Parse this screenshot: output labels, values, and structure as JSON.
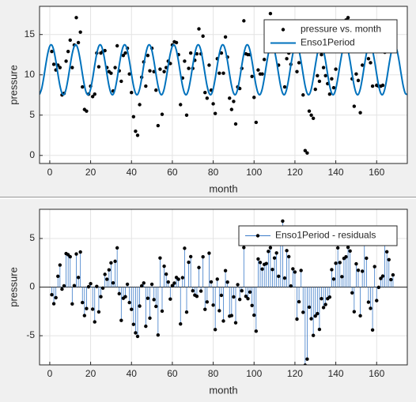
{
  "chart_data": [
    {
      "type": "scatter",
      "xlabel": "month",
      "ylabel": "pressure",
      "xlim": [
        -5,
        175
      ],
      "ylim": [
        -1,
        18.5
      ],
      "xticks": [
        0,
        20,
        40,
        60,
        80,
        100,
        120,
        140,
        160
      ],
      "yticks": [
        0,
        5,
        10,
        15
      ],
      "grid": true,
      "legend": "upper right",
      "series": [
        {
          "name": "pressure vs. month",
          "type": "scatter",
          "color": "#000000",
          "x": [
            1,
            2,
            3,
            4,
            5,
            6,
            7,
            8,
            9,
            10,
            11,
            12,
            13,
            14,
            15,
            16,
            17,
            18,
            19,
            20,
            21,
            22,
            23,
            24,
            25,
            26,
            27,
            28,
            29,
            30,
            31,
            32,
            33,
            34,
            35,
            36,
            37,
            38,
            39,
            40,
            41,
            42,
            43,
            44,
            45,
            46,
            47,
            48,
            49,
            50,
            51,
            52,
            53,
            54,
            55,
            56,
            57,
            58,
            59,
            60,
            61,
            62,
            63,
            64,
            65,
            66,
            67,
            68,
            69,
            70,
            71,
            72,
            73,
            74,
            75,
            76,
            77,
            78,
            79,
            80,
            81,
            82,
            83,
            84,
            85,
            86,
            87,
            88,
            89,
            90,
            91,
            92,
            93,
            94,
            95,
            96,
            97,
            98,
            99,
            100,
            101,
            102,
            103,
            104,
            105,
            106,
            107,
            108,
            109,
            110,
            111,
            112,
            113,
            114,
            115,
            116,
            117,
            118,
            119,
            120,
            121,
            122,
            123,
            124,
            125,
            126,
            127,
            128,
            129,
            130,
            131,
            132,
            133,
            134,
            135,
            136,
            137,
            138,
            139,
            140,
            141,
            142,
            143,
            144,
            145,
            146,
            147,
            148,
            149,
            150,
            151,
            152,
            153,
            154,
            155,
            156,
            157,
            158,
            159,
            160,
            161,
            162,
            163,
            164,
            165,
            166,
            167,
            168
          ],
          "values": [
            12.9,
            11.3,
            10.6,
            11.2,
            10.9,
            7.5,
            7.7,
            11.7,
            12.9,
            14.3,
            10.9,
            13.7,
            17.1,
            14.0,
            15.3,
            8.5,
            5.7,
            5.5,
            7.6,
            8.6,
            7.3,
            7.6,
            12.7,
            11.0,
            12.7,
            12.9,
            13.0,
            10.9,
            10.4,
            10.2,
            8.0,
            10.9,
            13.6,
            10.5,
            9.2,
            12.4,
            12.7,
            13.3,
            10.1,
            7.8,
            4.8,
            3.0,
            2.5,
            6.3,
            9.7,
            11.6,
            8.6,
            12.4,
            10.5,
            13.3,
            10.4,
            8.1,
            3.7,
            10.7,
            5.1,
            10.4,
            10.9,
            11.7,
            11.4,
            13.7,
            14.1,
            14.0,
            12.5,
            6.3,
            9.6,
            11.7,
            5.0,
            10.8,
            12.7,
            10.8,
            11.8,
            12.6,
            15.7,
            12.6,
            14.8,
            7.8,
            7.1,
            11.2,
            8.1,
            6.4,
            5.2,
            12.0,
            10.2,
            12.7,
            10.2,
            14.7,
            12.2,
            7.1,
            5.7,
            6.7,
            3.9,
            8.5,
            8.3,
            10.8,
            16.7,
            12.6,
            12.5,
            12.5,
            9.8,
            7.2,
            4.1,
            10.6,
            10.1,
            10.1,
            11.9,
            13.6,
            16.3,
            17.6,
            15.5,
            16.0,
            15.2,
            11.2,
            14.3,
            14.5,
            8.5,
            12.0,
            12.7,
            11.3,
            14.5,
            15.1,
            10.4,
            11.5,
            13.4,
            7.5,
            0.6,
            0.3,
            5.5,
            5.0,
            4.6,
            8.2,
            9.9,
            9.2,
            12.5,
            10.9,
            9.9,
            8.9,
            7.6,
            9.5,
            8.4,
            10.7,
            13.6,
            13.7,
            13.7,
            16.5,
            16.8,
            17.1,
            15.4,
            9.5,
            6.1,
            10.1,
            9.3,
            5.3,
            11.2,
            16.6,
            15.6,
            12.0,
            11.5,
            8.6,
            13.8,
            8.7,
            8.6,
            8.6,
            8.7,
            12.8,
            13.2,
            14.0,
            13.4,
            14.8
          ]
        },
        {
          "name": "Enso1Period",
          "type": "line",
          "color": "#0072bd",
          "x": [
            -5,
            -4,
            -3,
            -2,
            -1,
            0,
            1,
            2,
            3,
            4,
            5,
            6,
            7,
            8,
            9,
            10,
            11,
            12,
            13,
            14,
            15,
            16,
            17,
            18,
            19,
            20,
            21,
            22,
            23,
            24,
            25,
            26,
            27,
            28,
            29,
            30,
            31,
            32,
            33,
            34,
            35,
            36,
            37,
            38,
            39,
            40,
            41,
            42,
            43,
            44,
            45,
            46,
            47,
            48,
            49,
            50,
            51,
            52,
            53,
            54,
            55,
            56,
            57,
            58,
            59,
            60,
            61,
            62,
            63,
            64,
            65,
            66,
            67,
            68,
            69,
            70,
            71,
            72,
            73,
            74,
            75,
            76,
            77,
            78,
            79,
            80,
            81,
            82,
            83,
            84,
            85,
            86,
            87,
            88,
            89,
            90,
            91,
            92,
            93,
            94,
            95,
            96,
            97,
            98,
            99,
            100,
            101,
            102,
            103,
            104,
            105,
            106,
            107,
            108,
            109,
            110,
            111,
            112,
            113,
            114,
            115,
            116,
            117,
            118,
            119,
            120,
            121,
            122,
            123,
            124,
            125,
            126,
            127,
            128,
            129,
            130,
            131,
            132,
            133,
            134,
            135,
            136,
            137,
            138,
            139,
            140,
            141,
            142,
            143,
            144,
            145,
            146,
            147,
            148,
            149,
            150,
            151,
            152,
            153,
            154,
            155,
            156,
            157,
            158,
            159,
            160,
            161,
            162,
            163,
            164,
            165,
            166,
            167,
            168,
            169,
            170,
            171,
            172,
            173,
            174,
            175
          ],
          "values": [
            7.57,
            8.25,
            9.57,
            11.18,
            12.63,
            13.55,
            13.69,
            13.01,
            11.69,
            10.09,
            8.63,
            7.71,
            7.57,
            8.25,
            9.57,
            11.18,
            12.63,
            13.55,
            13.69,
            13.01,
            11.69,
            10.09,
            8.63,
            7.71,
            7.57,
            8.25,
            9.57,
            11.18,
            12.63,
            13.55,
            13.69,
            13.01,
            11.69,
            10.09,
            8.63,
            7.71,
            7.57,
            8.25,
            9.57,
            11.18,
            12.63,
            13.55,
            13.69,
            13.01,
            11.69,
            10.09,
            8.63,
            7.71,
            7.57,
            8.25,
            9.57,
            11.18,
            12.63,
            13.55,
            13.69,
            13.01,
            11.69,
            10.09,
            8.63,
            7.71,
            7.57,
            8.25,
            9.57,
            11.18,
            12.63,
            13.55,
            13.69,
            13.01,
            11.69,
            10.09,
            8.63,
            7.71,
            7.57,
            8.25,
            9.57,
            11.18,
            12.63,
            13.55,
            13.69,
            13.01,
            11.69,
            10.09,
            8.63,
            7.71,
            7.57,
            8.25,
            9.57,
            11.18,
            12.63,
            13.55,
            13.69,
            13.01,
            11.69,
            10.09,
            8.63,
            7.71,
            7.57,
            8.25,
            9.57,
            11.18,
            12.63,
            13.55,
            13.69,
            13.01,
            11.69,
            10.09,
            8.63,
            7.71,
            7.57,
            8.25,
            9.57,
            11.18,
            12.63,
            13.55,
            13.69,
            13.01,
            11.69,
            10.09,
            8.63,
            7.71,
            7.57,
            8.25,
            9.57,
            11.18,
            12.63,
            13.55,
            13.69,
            13.01,
            11.69,
            10.09,
            8.63,
            7.71,
            7.57,
            8.25,
            9.57,
            11.18,
            12.63,
            13.55,
            13.69,
            13.01,
            11.69,
            10.09,
            8.63,
            7.71,
            7.57,
            8.25,
            9.57,
            11.18,
            12.63,
            13.55,
            13.69,
            13.01,
            11.69,
            10.09,
            8.63,
            7.71,
            7.57,
            8.25,
            9.57,
            11.18,
            12.63,
            13.55,
            13.69,
            13.01,
            11.69,
            10.09,
            8.63,
            7.71,
            7.57,
            8.25,
            9.57,
            11.18,
            12.63,
            13.55,
            13.69,
            13.01,
            11.69,
            10.09,
            8.63,
            7.71,
            7.57
          ]
        }
      ]
    },
    {
      "type": "stem",
      "xlabel": "month",
      "ylabel": "pressure",
      "xlim": [
        -5,
        175
      ],
      "ylim": [
        -8,
        8
      ],
      "xticks": [
        0,
        20,
        40,
        60,
        80,
        100,
        120,
        140,
        160
      ],
      "yticks": [
        -5,
        0,
        5
      ],
      "grid": true,
      "legend": "upper right",
      "series": [
        {
          "name": "Enso1Period - residuals",
          "type": "stem",
          "color": "#3d7cc9",
          "marker_color": "#000000",
          "x": [
            1,
            2,
            3,
            4,
            5,
            6,
            7,
            8,
            9,
            10,
            11,
            12,
            13,
            14,
            15,
            16,
            17,
            18,
            19,
            20,
            21,
            22,
            23,
            24,
            25,
            26,
            27,
            28,
            29,
            30,
            31,
            32,
            33,
            34,
            35,
            36,
            37,
            38,
            39,
            40,
            41,
            42,
            43,
            44,
            45,
            46,
            47,
            48,
            49,
            50,
            51,
            52,
            53,
            54,
            55,
            56,
            57,
            58,
            59,
            60,
            61,
            62,
            63,
            64,
            65,
            66,
            67,
            68,
            69,
            70,
            71,
            72,
            73,
            74,
            75,
            76,
            77,
            78,
            79,
            80,
            81,
            82,
            83,
            84,
            85,
            86,
            87,
            88,
            89,
            90,
            91,
            92,
            93,
            94,
            95,
            96,
            97,
            98,
            99,
            100,
            101,
            102,
            103,
            104,
            105,
            106,
            107,
            108,
            109,
            110,
            111,
            112,
            113,
            114,
            115,
            116,
            117,
            118,
            119,
            120,
            121,
            122,
            123,
            124,
            125,
            126,
            127,
            128,
            129,
            130,
            131,
            132,
            133,
            134,
            135,
            136,
            137,
            138,
            139,
            140,
            141,
            142,
            143,
            144,
            145,
            146,
            147,
            148,
            149,
            150,
            151,
            152,
            153,
            154,
            155,
            156,
            157,
            158,
            159,
            160,
            161,
            162,
            163,
            164,
            165,
            166,
            167,
            168
          ],
          "values": [
            -0.79,
            -1.71,
            -1.09,
            1.11,
            2.27,
            -0.21,
            0.13,
            3.45,
            3.33,
            3.12,
            -1.73,
            0.15,
            3.41,
            0.99,
            3.61,
            -1.59,
            -2.93,
            -2.21,
            0.03,
            0.35,
            -2.27,
            -3.58,
            0.07,
            -2.55,
            -0.99,
            -0.11,
            1.31,
            0.81,
            1.77,
            2.49,
            0.43,
            2.65,
            4.03,
            -0.68,
            -3.43,
            -1.15,
            -0.99,
            0.29,
            -1.59,
            -2.29,
            -3.83,
            -4.71,
            -5.07,
            -1.95,
            0.13,
            0.42,
            -4.03,
            -1.15,
            -3.19,
            0.29,
            -1.29,
            -1.99,
            -4.93,
            2.99,
            -2.47,
            2.15,
            1.33,
            0.52,
            -1.23,
            0.15,
            0.41,
            0.99,
            0.81,
            -3.79,
            0.97,
            3.99,
            -2.57,
            2.55,
            3.13,
            -0.38,
            -0.83,
            -0.95,
            2.01,
            -0.41,
            3.11,
            -2.29,
            -1.53,
            3.49,
            0.53,
            -1.85,
            -4.37,
            0.82,
            -2.43,
            -0.85,
            -3.49,
            1.69,
            0.51,
            -2.99,
            -2.93,
            -1.01,
            -3.67,
            0.25,
            -1.27,
            -0.38,
            4.07,
            -0.95,
            -1.19,
            -0.51,
            -1.89,
            -2.89,
            -4.53,
            2.89,
            2.53,
            1.85,
            2.33,
            2.42,
            3.67,
            4.05,
            1.81,
            2.99,
            3.51,
            1.11,
            5.67,
            6.79,
            0.93,
            3.75,
            3.13,
            0.12,
            1.87,
            1.55,
            -3.29,
            -1.51,
            1.71,
            -2.59,
            -8.03,
            -7.41,
            -2.07,
            -3.25,
            -4.97,
            -2.98,
            -2.73,
            -4.35,
            -1.19,
            -2.11,
            -1.79,
            -1.19,
            -1.03,
            1.79,
            0.83,
            2.45,
            4.03,
            2.52,
            1.07,
            2.95,
            3.11,
            4.09,
            3.71,
            -0.59,
            -2.53,
            2.39,
            1.73,
            -2.95,
            1.63,
            5.42,
            2.97,
            -1.55,
            -2.19,
            -4.41,
            2.11,
            -1.39,
            -0.03,
            0.89,
            1.13,
            4.55,
            3.63,
            2.82,
            0.77,
            1.25
          ]
        }
      ]
    }
  ]
}
